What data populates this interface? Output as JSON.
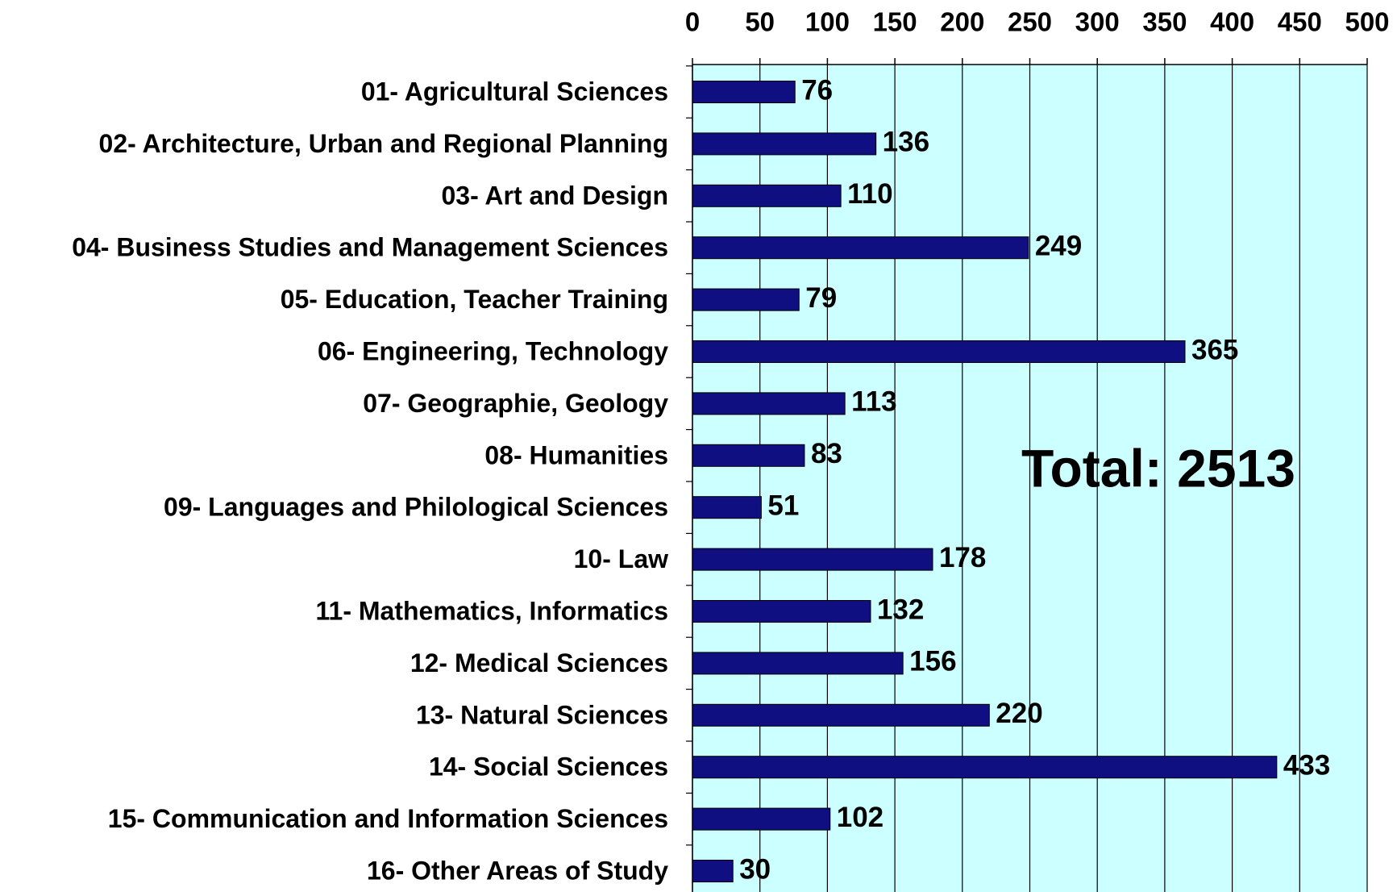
{
  "chart_data": {
    "type": "barh",
    "categories": [
      "01- Agricultural Sciences",
      "02- Architecture, Urban and Regional Planning",
      "03- Art and Design",
      "04- Business Studies and Management Sciences",
      "05- Education, Teacher Training",
      "06- Engineering, Technology",
      "07- Geographie, Geology",
      "08- Humanities",
      "09- Languages and Philological Sciences",
      "10- Law",
      "11- Mathematics, Informatics",
      "12- Medical Sciences",
      "13- Natural Sciences",
      "14- Social Sciences",
      "15- Communication and Information Sciences",
      "16- Other Areas of Study"
    ],
    "values": [
      76,
      136,
      110,
      249,
      79,
      365,
      113,
      83,
      51,
      178,
      132,
      156,
      220,
      433,
      102,
      30
    ],
    "color": "#0f0f82",
    "background": "#ccffff",
    "xlim": [
      0,
      500
    ],
    "xticks": [
      0,
      50,
      100,
      150,
      200,
      250,
      300,
      350,
      400,
      450,
      500
    ],
    "grid": true,
    "annotation": "Total: 2513"
  }
}
